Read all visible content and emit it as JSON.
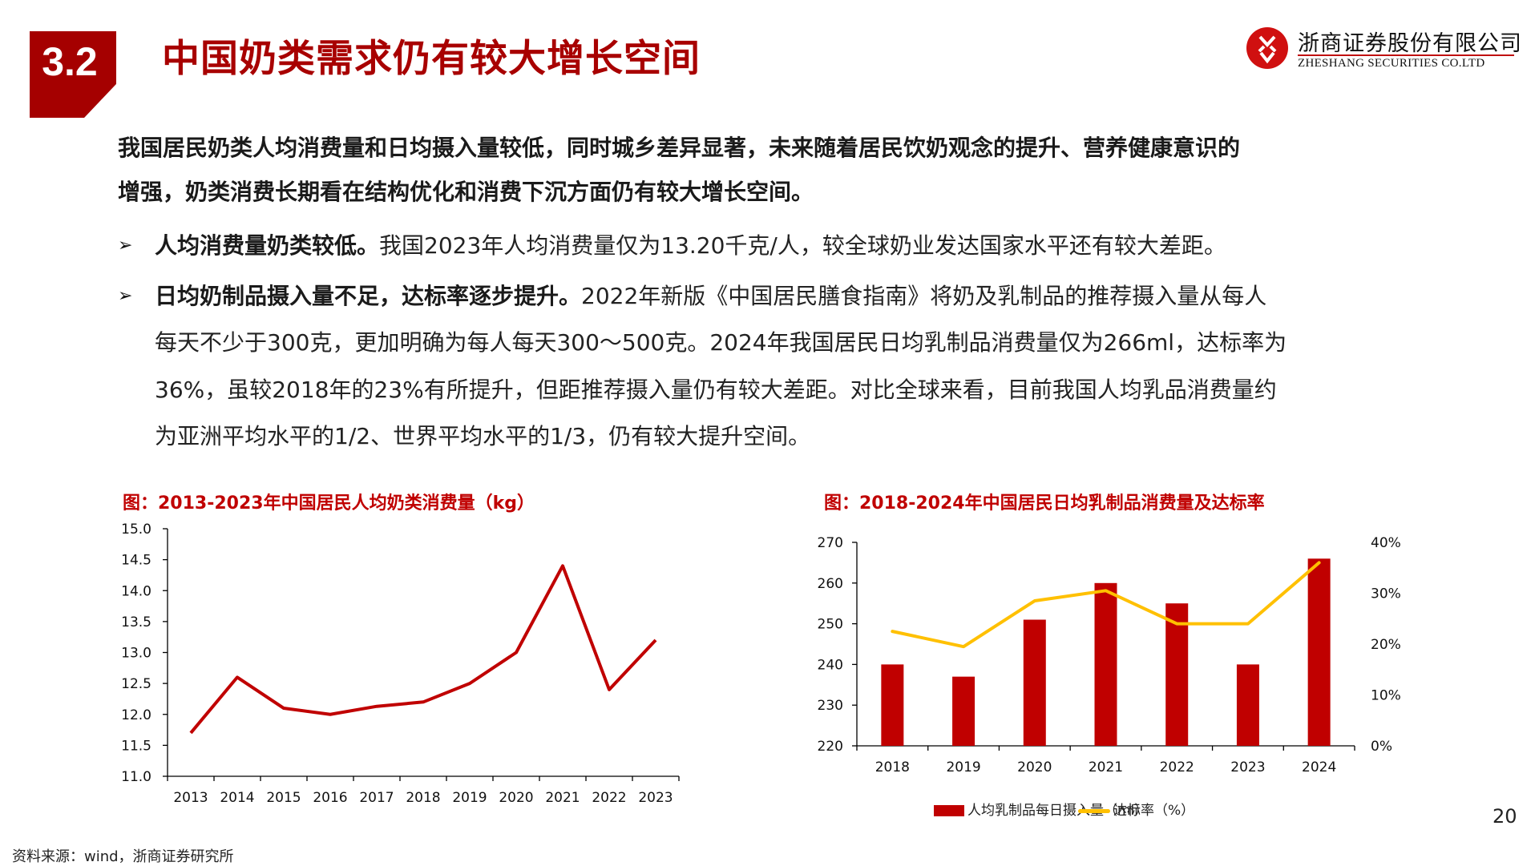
{
  "header": {
    "section_number": "3.2",
    "title": "中国奶类需求仍有较大增长空间",
    "logo_cn": "浙商证券股份有限公司",
    "logo_en": "ZHESHANG SECURITIES CO.LTD"
  },
  "summary": {
    "line1": "我国居民奶类人均消费量和日均摄入量较低，同时城乡差异显著，未来随着居民饮奶观念的提升、营养健康意识的",
    "line2": "增强，奶类消费长期看在结构优化和消费下沉方面仍有较大增长空间。"
  },
  "bullets": [
    {
      "marker": "➢",
      "bold": "人均消费量奶类较低。",
      "text": "我国2023年人均消费量仅为13.20千克/人，较全球奶业发达国家水平还有较大差距。"
    },
    {
      "marker": "➢",
      "bold": "日均奶制品摄入量不足，达标率逐步提升。",
      "text": "2022年新版《中国居民膳食指南》将奶及乳制品的推荐摄入量从每人",
      "continuation": [
        "每天不少于300克，更加明确为每人每天300～500克。2024年我国居民日均乳制品消费量仅为266ml，达标率为",
        "36%，虽较2018年的23%有所提升，但距推荐摄入量仍有较大差距。对比全球来看，目前我国人均乳品消费量约",
        "为亚洲平均水平的1/2、世界平均水平的1/3，仍有较大提升空间。"
      ]
    }
  ],
  "chart_data": [
    {
      "type": "line",
      "title": "图：2013-2023年中国居民人均奶类消费量（kg）",
      "categories": [
        "2013",
        "2014",
        "2015",
        "2016",
        "2017",
        "2018",
        "2019",
        "2020",
        "2021",
        "2022",
        "2023"
      ],
      "values": [
        11.7,
        12.6,
        12.1,
        12.0,
        12.13,
        12.2,
        12.5,
        13.0,
        14.4,
        12.4,
        13.2
      ],
      "ylim": [
        11.0,
        15.0
      ],
      "yticks": [
        "15.0",
        "14.5",
        "14.0",
        "13.5",
        "13.0",
        "12.5",
        "12.0",
        "11.5",
        "11.0"
      ],
      "xlabel": "",
      "ylabel": "kg",
      "color": "#c00000",
      "grid": false
    },
    {
      "type": "bar",
      "title": "图：2018-2024年中国居民日均乳制品消费量及达标率",
      "categories": [
        "2018",
        "2019",
        "2020",
        "2021",
        "2022",
        "2023",
        "2024"
      ],
      "series": [
        {
          "name": "人均乳制品每日摄入量（ml）",
          "type": "bar",
          "axis": "left",
          "color": "#c00000",
          "values": [
            240,
            237,
            251,
            260,
            255,
            240,
            266
          ]
        },
        {
          "name": "达标率（%）",
          "type": "line",
          "axis": "right",
          "color": "#ffc000",
          "values": [
            22.5,
            19.5,
            28.5,
            30.5,
            24.0,
            24.0,
            36.0
          ]
        }
      ],
      "ylim": [
        220,
        270
      ],
      "yticks": [
        "270",
        "260",
        "250",
        "240",
        "230",
        "220"
      ],
      "y2lim": [
        0,
        40
      ],
      "y2ticks": [
        "40%",
        "30%",
        "20%",
        "10%",
        "0%"
      ],
      "legend_position": "bottom",
      "grid": false
    }
  ],
  "footer": {
    "source": "资料来源：wind，浙商证券研究所",
    "page_number": "20"
  }
}
